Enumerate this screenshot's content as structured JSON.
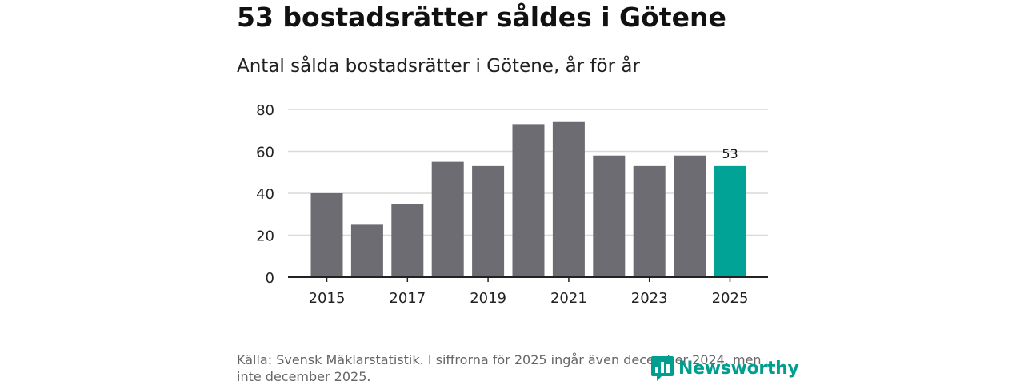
{
  "headline": "53 bostadsrätter såldes i Götene",
  "chart_data": {
    "type": "bar",
    "title": "Antal sålda bostadsrätter i Götene, år för år",
    "xlabel": "",
    "ylabel": "",
    "categories": [
      "2015",
      "2016",
      "2017",
      "2018",
      "2019",
      "2020",
      "2021",
      "2022",
      "2023",
      "2024",
      "2025"
    ],
    "values": [
      40,
      25,
      35,
      55,
      53,
      73,
      74,
      58,
      53,
      58,
      53
    ],
    "x_tick_labels": [
      "2015",
      "2017",
      "2019",
      "2021",
      "2023",
      "2025"
    ],
    "y_ticks": [
      0,
      20,
      40,
      60,
      80
    ],
    "ylim": [
      0,
      80
    ],
    "grid": true,
    "highlight_index": 10,
    "data_labels": [
      {
        "index": 10,
        "text": "53"
      }
    ],
    "colors": {
      "bar": "#6d6c72",
      "highlight": "#00a396",
      "grid": "#d9d9d9",
      "axis": "#222222"
    }
  },
  "source_text": "Källa: Svensk Mäklarstatistik. I siffrorna för 2025 ingår även december 2024, men inte december 2025.",
  "brand": {
    "name": "Newsworthy",
    "icon": "bar-chart-speech-icon",
    "color": "#009e8e"
  }
}
